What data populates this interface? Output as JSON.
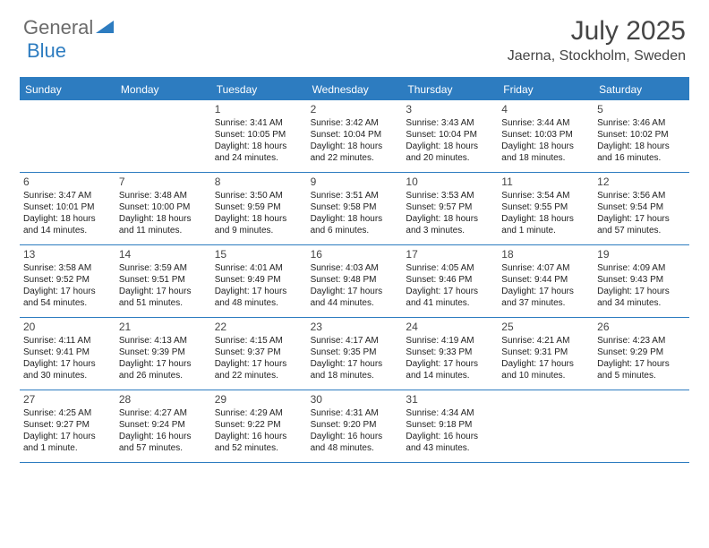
{
  "logo": {
    "text1": "General",
    "text2": "Blue"
  },
  "title": {
    "month": "July 2025",
    "location": "Jaerna, Stockholm, Sweden"
  },
  "colors": {
    "accent": "#2d7cc0",
    "text_dark": "#454545",
    "text_body": "#222222",
    "bg": "#ffffff"
  },
  "dayHeaders": [
    "Sunday",
    "Monday",
    "Tuesday",
    "Wednesday",
    "Thursday",
    "Friday",
    "Saturday"
  ],
  "weeks": [
    [
      null,
      null,
      {
        "n": "1",
        "sr": "Sunrise: 3:41 AM",
        "ss": "Sunset: 10:05 PM",
        "dl": "Daylight: 18 hours and 24 minutes."
      },
      {
        "n": "2",
        "sr": "Sunrise: 3:42 AM",
        "ss": "Sunset: 10:04 PM",
        "dl": "Daylight: 18 hours and 22 minutes."
      },
      {
        "n": "3",
        "sr": "Sunrise: 3:43 AM",
        "ss": "Sunset: 10:04 PM",
        "dl": "Daylight: 18 hours and 20 minutes."
      },
      {
        "n": "4",
        "sr": "Sunrise: 3:44 AM",
        "ss": "Sunset: 10:03 PM",
        "dl": "Daylight: 18 hours and 18 minutes."
      },
      {
        "n": "5",
        "sr": "Sunrise: 3:46 AM",
        "ss": "Sunset: 10:02 PM",
        "dl": "Daylight: 18 hours and 16 minutes."
      }
    ],
    [
      {
        "n": "6",
        "sr": "Sunrise: 3:47 AM",
        "ss": "Sunset: 10:01 PM",
        "dl": "Daylight: 18 hours and 14 minutes."
      },
      {
        "n": "7",
        "sr": "Sunrise: 3:48 AM",
        "ss": "Sunset: 10:00 PM",
        "dl": "Daylight: 18 hours and 11 minutes."
      },
      {
        "n": "8",
        "sr": "Sunrise: 3:50 AM",
        "ss": "Sunset: 9:59 PM",
        "dl": "Daylight: 18 hours and 9 minutes."
      },
      {
        "n": "9",
        "sr": "Sunrise: 3:51 AM",
        "ss": "Sunset: 9:58 PM",
        "dl": "Daylight: 18 hours and 6 minutes."
      },
      {
        "n": "10",
        "sr": "Sunrise: 3:53 AM",
        "ss": "Sunset: 9:57 PM",
        "dl": "Daylight: 18 hours and 3 minutes."
      },
      {
        "n": "11",
        "sr": "Sunrise: 3:54 AM",
        "ss": "Sunset: 9:55 PM",
        "dl": "Daylight: 18 hours and 1 minute."
      },
      {
        "n": "12",
        "sr": "Sunrise: 3:56 AM",
        "ss": "Sunset: 9:54 PM",
        "dl": "Daylight: 17 hours and 57 minutes."
      }
    ],
    [
      {
        "n": "13",
        "sr": "Sunrise: 3:58 AM",
        "ss": "Sunset: 9:52 PM",
        "dl": "Daylight: 17 hours and 54 minutes."
      },
      {
        "n": "14",
        "sr": "Sunrise: 3:59 AM",
        "ss": "Sunset: 9:51 PM",
        "dl": "Daylight: 17 hours and 51 minutes."
      },
      {
        "n": "15",
        "sr": "Sunrise: 4:01 AM",
        "ss": "Sunset: 9:49 PM",
        "dl": "Daylight: 17 hours and 48 minutes."
      },
      {
        "n": "16",
        "sr": "Sunrise: 4:03 AM",
        "ss": "Sunset: 9:48 PM",
        "dl": "Daylight: 17 hours and 44 minutes."
      },
      {
        "n": "17",
        "sr": "Sunrise: 4:05 AM",
        "ss": "Sunset: 9:46 PM",
        "dl": "Daylight: 17 hours and 41 minutes."
      },
      {
        "n": "18",
        "sr": "Sunrise: 4:07 AM",
        "ss": "Sunset: 9:44 PM",
        "dl": "Daylight: 17 hours and 37 minutes."
      },
      {
        "n": "19",
        "sr": "Sunrise: 4:09 AM",
        "ss": "Sunset: 9:43 PM",
        "dl": "Daylight: 17 hours and 34 minutes."
      }
    ],
    [
      {
        "n": "20",
        "sr": "Sunrise: 4:11 AM",
        "ss": "Sunset: 9:41 PM",
        "dl": "Daylight: 17 hours and 30 minutes."
      },
      {
        "n": "21",
        "sr": "Sunrise: 4:13 AM",
        "ss": "Sunset: 9:39 PM",
        "dl": "Daylight: 17 hours and 26 minutes."
      },
      {
        "n": "22",
        "sr": "Sunrise: 4:15 AM",
        "ss": "Sunset: 9:37 PM",
        "dl": "Daylight: 17 hours and 22 minutes."
      },
      {
        "n": "23",
        "sr": "Sunrise: 4:17 AM",
        "ss": "Sunset: 9:35 PM",
        "dl": "Daylight: 17 hours and 18 minutes."
      },
      {
        "n": "24",
        "sr": "Sunrise: 4:19 AM",
        "ss": "Sunset: 9:33 PM",
        "dl": "Daylight: 17 hours and 14 minutes."
      },
      {
        "n": "25",
        "sr": "Sunrise: 4:21 AM",
        "ss": "Sunset: 9:31 PM",
        "dl": "Daylight: 17 hours and 10 minutes."
      },
      {
        "n": "26",
        "sr": "Sunrise: 4:23 AM",
        "ss": "Sunset: 9:29 PM",
        "dl": "Daylight: 17 hours and 5 minutes."
      }
    ],
    [
      {
        "n": "27",
        "sr": "Sunrise: 4:25 AM",
        "ss": "Sunset: 9:27 PM",
        "dl": "Daylight: 17 hours and 1 minute."
      },
      {
        "n": "28",
        "sr": "Sunrise: 4:27 AM",
        "ss": "Sunset: 9:24 PM",
        "dl": "Daylight: 16 hours and 57 minutes."
      },
      {
        "n": "29",
        "sr": "Sunrise: 4:29 AM",
        "ss": "Sunset: 9:22 PM",
        "dl": "Daylight: 16 hours and 52 minutes."
      },
      {
        "n": "30",
        "sr": "Sunrise: 4:31 AM",
        "ss": "Sunset: 9:20 PM",
        "dl": "Daylight: 16 hours and 48 minutes."
      },
      {
        "n": "31",
        "sr": "Sunrise: 4:34 AM",
        "ss": "Sunset: 9:18 PM",
        "dl": "Daylight: 16 hours and 43 minutes."
      },
      null,
      null
    ]
  ]
}
